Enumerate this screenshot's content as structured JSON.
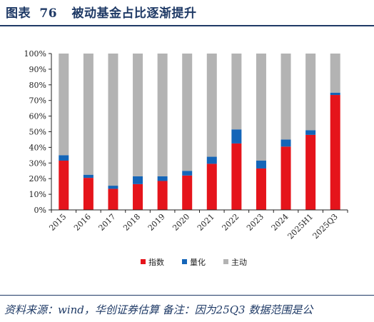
{
  "header": {
    "title_prefix": "图表",
    "title_number": "76",
    "title_text": "被动基金占比逐渐提升"
  },
  "footer": {
    "source": "资料来源：wind，华创证券估算  备注：因为25Q3 数据范围是公"
  },
  "colors": {
    "index": "#e5141b",
    "quant": "#1465b8",
    "active": "#b3b3b3"
  },
  "chart_data": {
    "type": "bar",
    "stacked": true,
    "categories": [
      "2015",
      "2016",
      "2017",
      "2018",
      "2019",
      "2020",
      "2021",
      "2022",
      "2023",
      "2024",
      "2025H1",
      "2025Q3"
    ],
    "series": [
      {
        "name": "指数",
        "values": [
          31.5,
          20.5,
          13.5,
          16.5,
          18.5,
          22,
          29.5,
          42.5,
          26.5,
          40.5,
          48,
          73.5
        ]
      },
      {
        "name": "量化",
        "values": [
          3.5,
          2,
          2,
          5,
          3,
          3,
          4.5,
          9,
          5,
          4.5,
          3,
          1.5
        ]
      },
      {
        "name": "主动",
        "values": [
          65,
          77.5,
          84.5,
          78.5,
          78.5,
          75,
          66,
          48.5,
          68.5,
          55,
          49,
          25
        ]
      }
    ],
    "yticks": [
      "0%",
      "10%",
      "20%",
      "30%",
      "40%",
      "50%",
      "60%",
      "70%",
      "80%",
      "90%",
      "100%"
    ],
    "ylim": [
      0,
      100
    ],
    "legend_position": "bottom"
  }
}
